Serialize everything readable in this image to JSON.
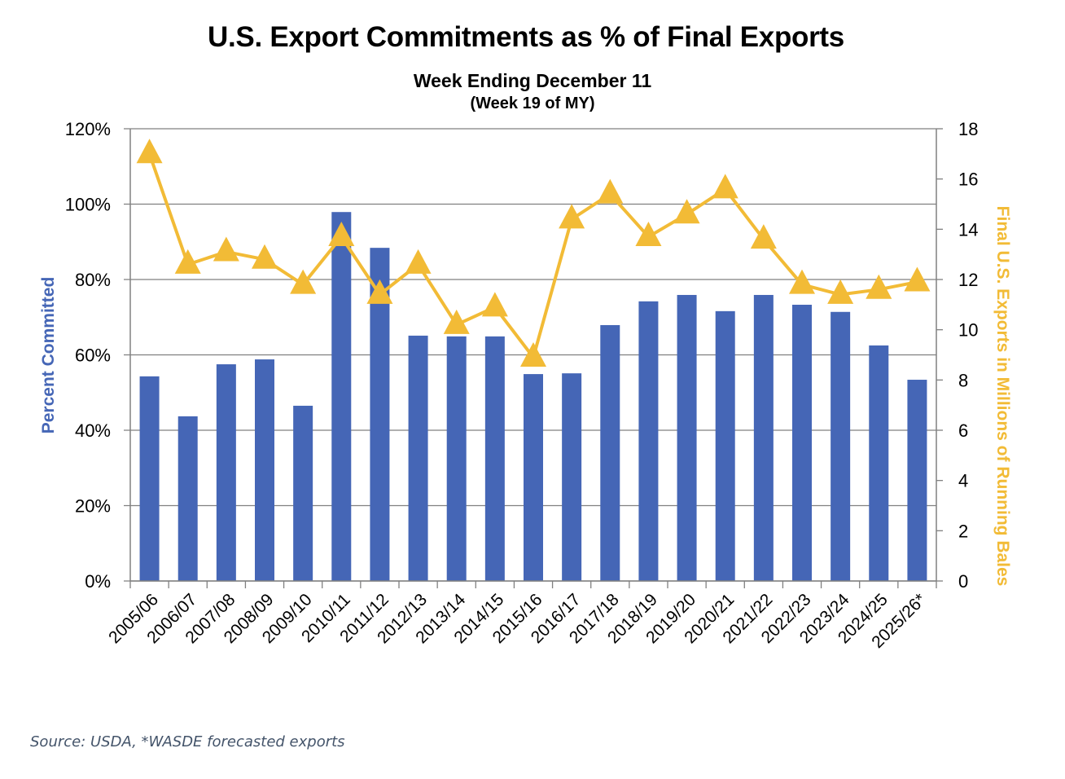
{
  "header": {
    "title": "U.S. Export Commitments as % of Final Exports",
    "subtitle": "Week Ending December 11",
    "subtitle2": "(Week 19 of MY)"
  },
  "footer": {
    "source": "Source: USDA, *WASDE forecasted exports"
  },
  "colors": {
    "bar": "#4566b6",
    "line": "#f2bb36",
    "grid": "#808080",
    "left_axis_title": "#4566b6",
    "right_axis_title": "#f2bb36"
  },
  "chart_data": {
    "type": "bar+line",
    "title": "U.S. Export Commitments as % of Final Exports",
    "subtitle": "Week Ending December 11 (Week 19 of MY)",
    "categories": [
      "2005/06",
      "2006/07",
      "2007/08",
      "2008/09",
      "2009/10",
      "2010/11",
      "2011/12",
      "2012/13",
      "2013/14",
      "2014/15",
      "2015/16",
      "2016/17",
      "2017/18",
      "2018/19",
      "2019/20",
      "2020/21",
      "2021/22",
      "2022/23",
      "2023/24",
      "2024/25",
      "2025/26*"
    ],
    "series": [
      {
        "name": "Percent Committed",
        "type": "bar",
        "axis": "left",
        "values": [
          54.3,
          43.7,
          57.5,
          58.8,
          46.5,
          97.9,
          88.4,
          65.1,
          64.9,
          64.9,
          54.9,
          55.1,
          67.9,
          74.2,
          75.9,
          71.6,
          75.9,
          73.3,
          71.4,
          62.5,
          53.4
        ]
      },
      {
        "name": "Final U.S. Exports in Millions of Running Bales",
        "type": "line",
        "marker": "triangle",
        "axis": "right",
        "values": [
          17.0,
          12.6,
          13.1,
          12.8,
          11.8,
          13.7,
          11.4,
          12.6,
          10.2,
          10.9,
          8.9,
          14.4,
          15.4,
          13.7,
          14.6,
          15.6,
          13.6,
          11.8,
          11.4,
          11.6,
          11.9
        ]
      }
    ],
    "left_axis": {
      "label": "Percent Committed",
      "range": [
        0,
        120
      ],
      "ticks": [
        "0%",
        "20%",
        "40%",
        "60%",
        "80%",
        "100%",
        "120%"
      ],
      "tick_values": [
        0,
        20,
        40,
        60,
        80,
        100,
        120
      ]
    },
    "right_axis": {
      "label": "Final U.S. Exports in Millions of Running Bales",
      "range": [
        0,
        18
      ],
      "ticks": [
        "0",
        "2",
        "4",
        "6",
        "8",
        "10",
        "12",
        "14",
        "16",
        "18"
      ],
      "tick_values": [
        0,
        2,
        4,
        6,
        8,
        10,
        12,
        14,
        16,
        18
      ]
    },
    "grid": true,
    "legend": "none"
  }
}
